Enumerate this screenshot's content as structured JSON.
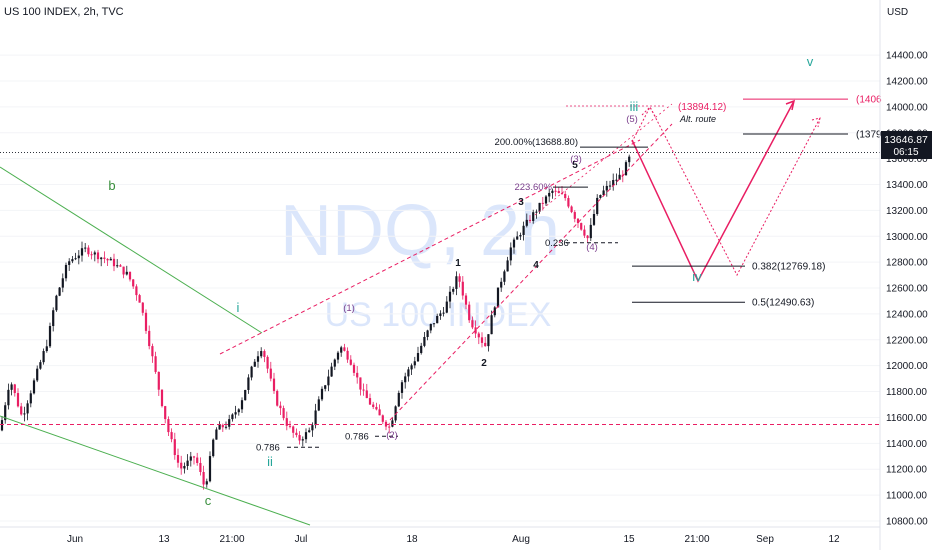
{
  "header": {
    "title": "US 100 INDEX, 2h, TVC"
  },
  "watermark": {
    "symbol": "NDQ, 2h",
    "name": "US 100 INDEX"
  },
  "price_axis": {
    "currency": "USD",
    "current_price": "13646.87",
    "countdown": "06:15"
  },
  "colors": {
    "bull": "#131722",
    "bear": "#e91e63",
    "trendline": "#4caf50",
    "channel": "#e91e63",
    "projection": "#e91e63",
    "wave_green": "#26a69a",
    "wave_purple": "#7b3f8c",
    "fib": "#131722",
    "watermark": "#dbe6fb"
  },
  "chart_data": {
    "type": "candlestick",
    "title": "US 100 INDEX, 2h, TVC",
    "ylim": [
      10700,
      14600
    ],
    "y_ticks": [
      "14400.00",
      "14200.00",
      "14000.00",
      "13800.00",
      "13600.00",
      "13400.00",
      "13200.00",
      "13000.00",
      "12800.00",
      "12600.00",
      "12400.00",
      "12200.00",
      "12000.00",
      "11800.00",
      "11600.00",
      "11400.00",
      "11200.00",
      "11000.00",
      "10800.00"
    ],
    "x_ticks": [
      "Jun",
      "13",
      "21:00",
      "Jul",
      "18",
      "Aug",
      "15",
      "21:00",
      "Sep",
      "12"
    ],
    "anchor_points": [
      [
        0,
        11500
      ],
      [
        10,
        11900
      ],
      [
        22,
        11600
      ],
      [
        48,
        12200
      ],
      [
        55,
        12500
      ],
      [
        68,
        12800
      ],
      [
        85,
        12900
      ],
      [
        98,
        12850
      ],
      [
        112,
        12800
      ],
      [
        128,
        12700
      ],
      [
        140,
        12500
      ],
      [
        150,
        12150
      ],
      [
        158,
        11850
      ],
      [
        168,
        11500
      ],
      [
        180,
        11200
      ],
      [
        195,
        11300
      ],
      [
        205,
        11050
      ],
      [
        215,
        11500
      ],
      [
        228,
        11550
      ],
      [
        240,
        11700
      ],
      [
        255,
        12050
      ],
      [
        262,
        12150
      ],
      [
        275,
        11750
      ],
      [
        287,
        11550
      ],
      [
        298,
        11420
      ],
      [
        310,
        11500
      ],
      [
        322,
        11800
      ],
      [
        340,
        12150
      ],
      [
        350,
        12050
      ],
      [
        362,
        11800
      ],
      [
        378,
        11620
      ],
      [
        390,
        11520
      ],
      [
        400,
        11850
      ],
      [
        415,
        12050
      ],
      [
        430,
        12300
      ],
      [
        445,
        12450
      ],
      [
        458,
        12700
      ],
      [
        470,
        12350
      ],
      [
        485,
        12150
      ],
      [
        497,
        12550
      ],
      [
        510,
        12900
      ],
      [
        522,
        13050
      ],
      [
        536,
        13200
      ],
      [
        552,
        13350
      ],
      [
        565,
        13300
      ],
      [
        575,
        13150
      ],
      [
        588,
        12980
      ],
      [
        598,
        13300
      ],
      [
        610,
        13400
      ],
      [
        622,
        13480
      ],
      [
        632,
        13647
      ]
    ],
    "fib_levels": [
      {
        "label": "200.00%(13688.80)",
        "value": 13688.8
      },
      {
        "label": "223.60%",
        "value": 13380
      },
      {
        "label": "0.236",
        "value": 12950
      },
      {
        "label": "0.382(12769.18)",
        "value": 12769.18
      },
      {
        "label": "0.5(12490.63)",
        "value": 12490.63
      },
      {
        "label": "0.786",
        "value": 11370
      },
      {
        "label": "0.786",
        "value": 11455
      }
    ],
    "targets": [
      {
        "label": "(13894.12)",
        "value": 13894.12
      },
      {
        "label": "(1379",
        "value": 13790
      },
      {
        "label": "(1406",
        "value": 14060
      }
    ],
    "wave_labels": {
      "green": [
        "b",
        "i",
        "ii",
        "c",
        "iii",
        "iv",
        "v"
      ],
      "black": [
        "1",
        "2",
        "3",
        "4",
        "5"
      ],
      "purple": [
        "(1)",
        "(2)",
        "(3)",
        "(4)",
        "(5)"
      ]
    },
    "annotations": [
      "Alt. route"
    ],
    "support_line": 11545
  }
}
